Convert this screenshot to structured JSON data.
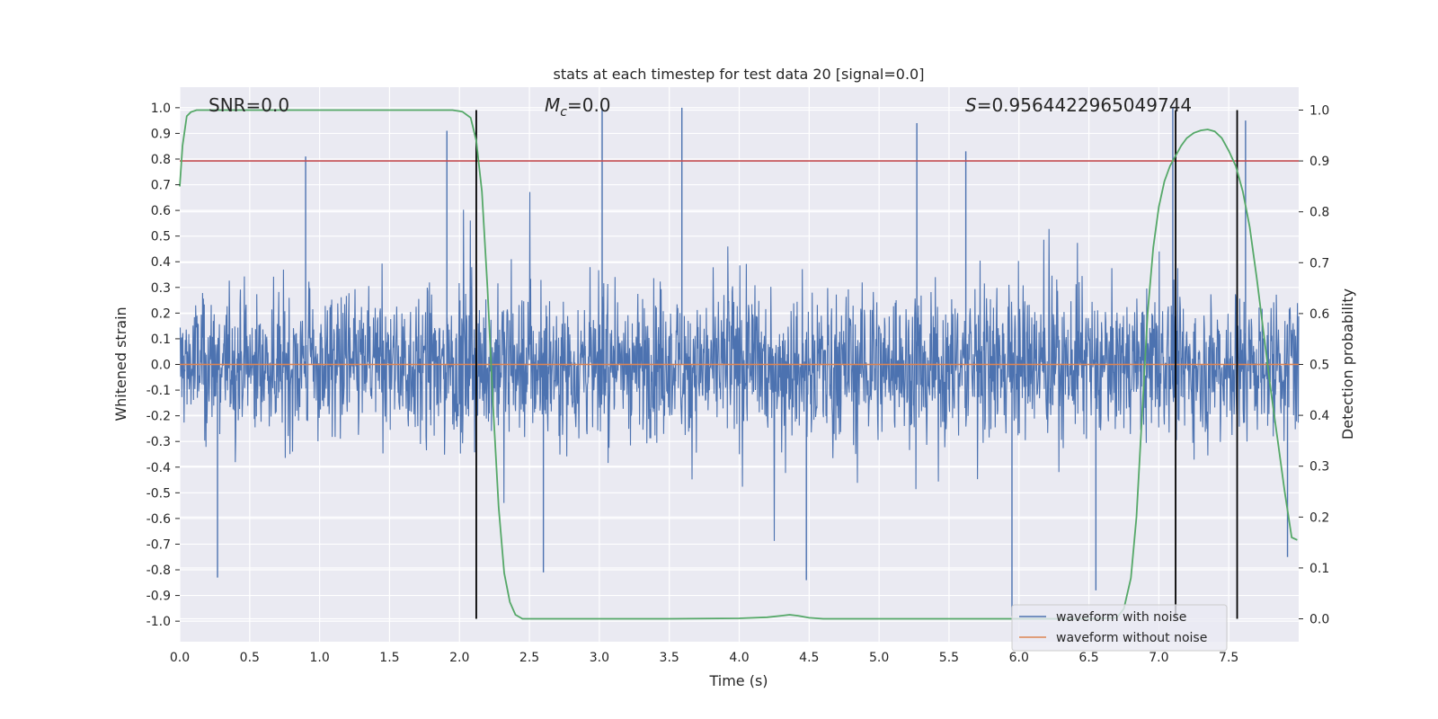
{
  "chart_data": {
    "type": "line",
    "title": "stats at each timestep for test data 20 [signal=0.0]",
    "xlabel": "Time (s)",
    "ylabel": "Whitened strain",
    "y2label": "Detection probability",
    "xlim": [
      0.0,
      8.0
    ],
    "ylim": [
      -1.08,
      1.08
    ],
    "y2lim": [
      -0.045,
      1.045
    ],
    "x_ticks": [
      0.0,
      0.5,
      1.0,
      1.5,
      2.0,
      2.5,
      3.0,
      3.5,
      4.0,
      4.5,
      5.0,
      5.5,
      6.0,
      6.5,
      7.0,
      7.5
    ],
    "x_tick_labels": [
      "0.0",
      "0.5",
      "1.0",
      "1.5",
      "2.0",
      "2.5",
      "3.0",
      "3.5",
      "4.0",
      "4.5",
      "5.0",
      "5.5",
      "6.0",
      "6.5",
      "7.0",
      "7.5"
    ],
    "y_ticks": [
      1.0,
      0.9,
      0.8,
      0.7,
      0.6,
      0.5,
      0.4,
      0.3,
      0.2,
      0.1,
      0.0,
      -0.1,
      -0.2,
      -0.3,
      -0.4,
      -0.5,
      -0.6,
      -0.7,
      -0.8,
      -0.9,
      -1.0
    ],
    "y_tick_labels": [
      "1.0",
      "0.9",
      "0.8",
      "0.7",
      "0.6",
      "0.5",
      "0.4",
      "0.3",
      "0.2",
      "0.1",
      "0.0",
      "-0.1",
      "-0.2",
      "-0.3",
      "-0.4",
      "-0.5",
      "-0.6",
      "-0.7",
      "-0.8",
      "-0.9",
      "-1.0"
    ],
    "y2_ticks": [
      1.0,
      0.9,
      0.8,
      0.7,
      0.6,
      0.5,
      0.4,
      0.3,
      0.2,
      0.1,
      0.0
    ],
    "y2_tick_labels": [
      "1.0",
      "0.9",
      "0.8",
      "0.7",
      "0.6",
      "0.5",
      "0.4",
      "0.3",
      "0.2",
      "0.1",
      "0.0"
    ],
    "annotations": {
      "snr": "SNR=0.0",
      "mc_symbol": "M",
      "mc_sub": "c",
      "mc_value": "=0.0",
      "s_symbol": "S",
      "s_value": "=0.9564422965049744"
    },
    "threshold": {
      "axis": "y2",
      "value": 0.9,
      "color": "#c44e52"
    },
    "vertical_lines": [
      2.12,
      7.12,
      7.56
    ],
    "vertical_lines_range_y2": [
      0.0,
      1.0
    ],
    "series": [
      {
        "name": "waveform with noise",
        "color": "#4c72b0",
        "axis": "y",
        "style": "dense noise, approx. |strain| <= 0.4 typical, spikes to about +/-1.0",
        "notable_peaks": [
          {
            "x": 0.9,
            "y": 0.81
          },
          {
            "x": 1.91,
            "y": 0.91
          },
          {
            "x": 3.02,
            "y": 1.0
          },
          {
            "x": 3.59,
            "y": 1.0
          },
          {
            "x": 5.27,
            "y": 0.94
          },
          {
            "x": 5.62,
            "y": 0.83
          },
          {
            "x": 7.1,
            "y": 1.0
          },
          {
            "x": 7.62,
            "y": 0.95
          },
          {
            "x": 0.27,
            "y": -0.83
          },
          {
            "x": 2.6,
            "y": -0.81
          },
          {
            "x": 4.48,
            "y": -0.84
          },
          {
            "x": 5.95,
            "y": -0.98
          },
          {
            "x": 6.55,
            "y": -0.88
          },
          {
            "x": 7.92,
            "y": -0.75
          }
        ]
      },
      {
        "name": "waveform without noise",
        "color": "#dd8452",
        "axis": "y",
        "x": [
          0.0,
          8.0
        ],
        "y": [
          0.0,
          0.0
        ]
      },
      {
        "name": "detection probability",
        "color": "#55a868",
        "axis": "y2",
        "x": [
          0.0,
          0.02,
          0.05,
          0.08,
          0.12,
          0.2,
          0.5,
          1.0,
          1.5,
          1.8,
          1.95,
          2.02,
          2.08,
          2.12,
          2.16,
          2.2,
          2.24,
          2.28,
          2.32,
          2.36,
          2.4,
          2.45,
          2.55,
          3.0,
          3.5,
          4.0,
          4.2,
          4.3,
          4.36,
          4.42,
          4.5,
          4.6,
          5.0,
          5.5,
          6.0,
          6.5,
          6.7,
          6.75,
          6.8,
          6.84,
          6.88,
          6.92,
          6.96,
          7.0,
          7.04,
          7.08,
          7.12,
          7.16,
          7.2,
          7.25,
          7.3,
          7.35,
          7.4,
          7.45,
          7.5,
          7.55,
          7.6,
          7.65,
          7.7,
          7.75,
          7.8,
          7.85,
          7.9,
          7.95,
          7.99
        ],
        "y": [
          0.85,
          0.93,
          0.988,
          0.996,
          1.0,
          1.0,
          1.0,
          1.0,
          1.0,
          1.0,
          1.0,
          0.997,
          0.985,
          0.94,
          0.84,
          0.65,
          0.42,
          0.22,
          0.09,
          0.033,
          0.008,
          0.0,
          0.0,
          0.0,
          0.0,
          0.001,
          0.003,
          0.006,
          0.008,
          0.006,
          0.002,
          0.0,
          0.0,
          0.0,
          0.0,
          0.0,
          0.002,
          0.02,
          0.08,
          0.2,
          0.4,
          0.6,
          0.73,
          0.81,
          0.86,
          0.89,
          0.91,
          0.93,
          0.945,
          0.955,
          0.96,
          0.962,
          0.958,
          0.945,
          0.92,
          0.89,
          0.84,
          0.77,
          0.67,
          0.56,
          0.45,
          0.35,
          0.25,
          0.16,
          0.155
        ]
      }
    ],
    "legend": {
      "position": "lower-right",
      "entries": [
        {
          "label": "waveform with noise",
          "color": "#4c72b0"
        },
        {
          "label": "waveform without noise",
          "color": "#dd8452"
        }
      ]
    },
    "grid": true
  }
}
